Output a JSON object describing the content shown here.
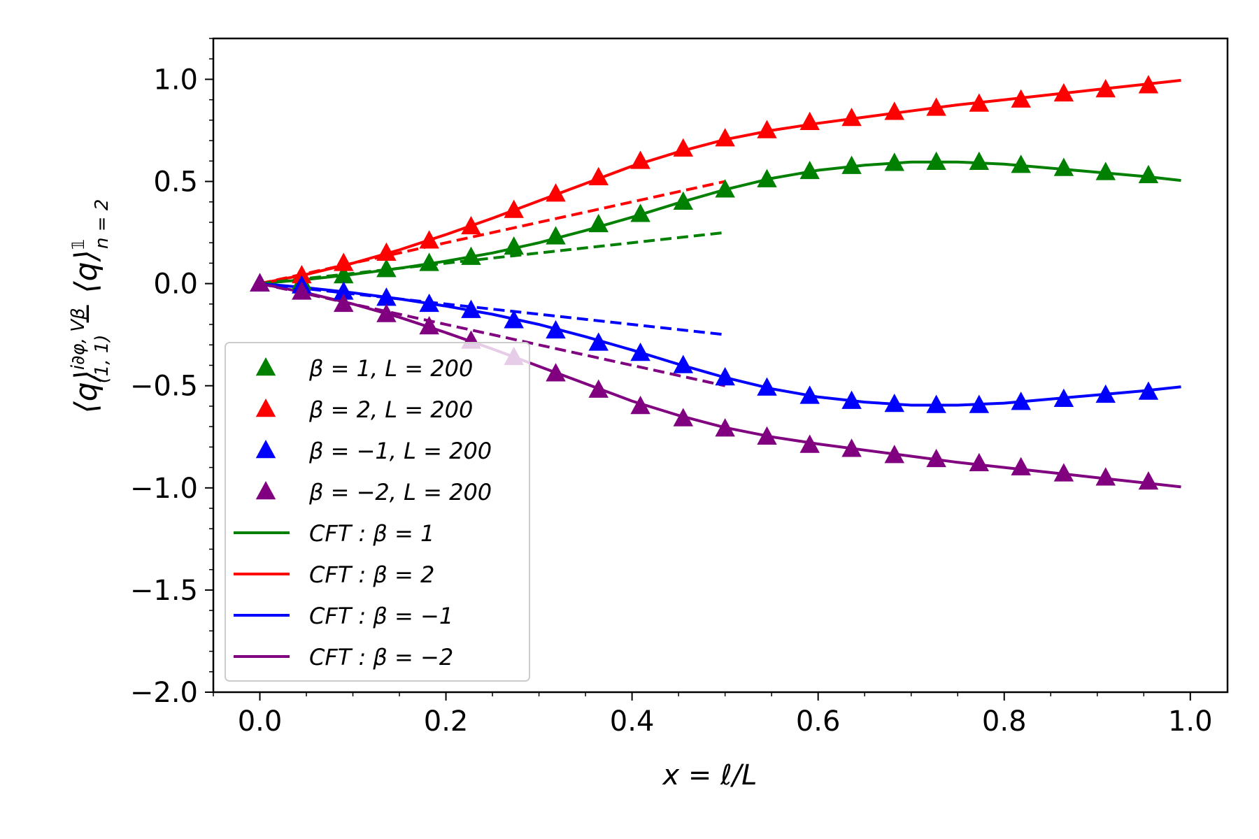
{
  "chart_data": {
    "type": "line",
    "xlabel": "x = ℓ/L",
    "ylabel": "⟨q⟩(1,1)^{i∂φ,Vβ} − ⟨q⟩n=2^𝟙",
    "ylabel_parts": {
      "q1": "⟨q⟩",
      "sup": "i∂φ, Vβ",
      "sub": "(1, 1)",
      "minus": " − ",
      "q2": "⟨q⟩",
      "sup2": "𝟙",
      "sub2": "n = 2"
    },
    "xlim": [
      -0.05,
      1.04
    ],
    "ylim": [
      -2.0,
      1.2
    ],
    "x_ticks": [
      0.0,
      0.2,
      0.4,
      0.6,
      0.8,
      1.0
    ],
    "x_tick_labels": [
      "0.0",
      "0.2",
      "0.4",
      "0.6",
      "0.8",
      "1.0"
    ],
    "y_ticks": [
      1.0,
      0.5,
      0.0,
      -0.5,
      -1.0,
      -1.5,
      -2.0
    ],
    "y_tick_labels": [
      "1.0",
      "0.5",
      "0.0",
      "−0.5",
      "−1.0",
      "−1.5",
      "−2.0"
    ],
    "grid": false,
    "legend_position": "lower-left",
    "x_points": [
      0.0,
      0.045,
      0.09,
      0.136,
      0.182,
      0.227,
      0.273,
      0.318,
      0.364,
      0.409,
      0.455,
      0.5,
      0.545,
      0.591,
      0.636,
      0.682,
      0.727,
      0.773,
      0.818,
      0.864,
      0.909,
      0.955
    ],
    "series": [
      {
        "name": "β = 1, L = 200",
        "marker": "triangle",
        "color": "#008000",
        "values": [
          0.0,
          0.01,
          0.04,
          0.07,
          0.1,
          0.13,
          0.18,
          0.23,
          0.29,
          0.34,
          0.4,
          0.46,
          0.51,
          0.55,
          0.575,
          0.59,
          0.595,
          0.595,
          0.58,
          0.565,
          0.545,
          0.53
        ]
      },
      {
        "name": "β = 2, L = 200",
        "marker": "triangle",
        "color": "#ff0000",
        "values": [
          0.0,
          0.04,
          0.1,
          0.15,
          0.21,
          0.28,
          0.36,
          0.44,
          0.52,
          0.6,
          0.66,
          0.71,
          0.75,
          0.79,
          0.81,
          0.84,
          0.86,
          0.88,
          0.9,
          0.93,
          0.95,
          0.97
        ]
      },
      {
        "name": "β = −1, L = 200",
        "marker": "triangle",
        "color": "#0000ff",
        "values": [
          0.0,
          -0.01,
          -0.04,
          -0.07,
          -0.1,
          -0.13,
          -0.18,
          -0.23,
          -0.29,
          -0.34,
          -0.4,
          -0.46,
          -0.51,
          -0.55,
          -0.575,
          -0.59,
          -0.595,
          -0.595,
          -0.58,
          -0.565,
          -0.545,
          -0.53
        ]
      },
      {
        "name": "β = −2, L = 200",
        "marker": "triangle",
        "color": "#800080",
        "values": [
          0.0,
          -0.04,
          -0.1,
          -0.15,
          -0.21,
          -0.28,
          -0.36,
          -0.44,
          -0.52,
          -0.6,
          -0.66,
          -0.71,
          -0.75,
          -0.79,
          -0.81,
          -0.84,
          -0.86,
          -0.88,
          -0.9,
          -0.93,
          -0.95,
          -0.97
        ]
      }
    ],
    "cft_curves": [
      {
        "name": "CFT : β = 1",
        "color": "#008000",
        "x": [
          0.0,
          0.05,
          0.1,
          0.15,
          0.2,
          0.25,
          0.3,
          0.35,
          0.4,
          0.45,
          0.5,
          0.55,
          0.6,
          0.65,
          0.7,
          0.75,
          0.8,
          0.85,
          0.9,
          0.95,
          0.99
        ],
        "y": [
          0.0,
          0.02,
          0.045,
          0.075,
          0.11,
          0.15,
          0.2,
          0.26,
          0.325,
          0.395,
          0.46,
          0.515,
          0.555,
          0.58,
          0.595,
          0.595,
          0.585,
          0.565,
          0.545,
          0.525,
          0.505
        ]
      },
      {
        "name": "CFT : β = 2",
        "color": "#ff0000",
        "x": [
          0.0,
          0.05,
          0.1,
          0.15,
          0.2,
          0.25,
          0.3,
          0.35,
          0.4,
          0.45,
          0.5,
          0.55,
          0.6,
          0.65,
          0.7,
          0.75,
          0.8,
          0.85,
          0.9,
          0.95,
          0.99
        ],
        "y": [
          0.0,
          0.045,
          0.1,
          0.165,
          0.24,
          0.32,
          0.405,
          0.49,
          0.575,
          0.645,
          0.705,
          0.75,
          0.785,
          0.815,
          0.845,
          0.875,
          0.9,
          0.925,
          0.95,
          0.975,
          0.995
        ]
      },
      {
        "name": "CFT : β = −1",
        "color": "#0000ff",
        "x": [
          0.0,
          0.05,
          0.1,
          0.15,
          0.2,
          0.25,
          0.3,
          0.35,
          0.4,
          0.45,
          0.5,
          0.55,
          0.6,
          0.65,
          0.7,
          0.75,
          0.8,
          0.85,
          0.9,
          0.95,
          0.99
        ],
        "y": [
          0.0,
          -0.02,
          -0.045,
          -0.075,
          -0.11,
          -0.15,
          -0.2,
          -0.26,
          -0.325,
          -0.395,
          -0.46,
          -0.515,
          -0.555,
          -0.58,
          -0.595,
          -0.595,
          -0.585,
          -0.565,
          -0.545,
          -0.525,
          -0.505
        ]
      },
      {
        "name": "CFT : β = −2",
        "color": "#800080",
        "x": [
          0.0,
          0.05,
          0.1,
          0.15,
          0.2,
          0.25,
          0.3,
          0.35,
          0.4,
          0.45,
          0.5,
          0.55,
          0.6,
          0.65,
          0.7,
          0.75,
          0.8,
          0.85,
          0.9,
          0.95,
          0.99
        ],
        "y": [
          0.0,
          -0.045,
          -0.1,
          -0.165,
          -0.24,
          -0.32,
          -0.405,
          -0.49,
          -0.575,
          -0.645,
          -0.705,
          -0.75,
          -0.785,
          -0.815,
          -0.845,
          -0.875,
          -0.9,
          -0.925,
          -0.95,
          -0.975,
          -0.995
        ]
      }
    ],
    "dashed_lines": [
      {
        "color": "#ff0000",
        "x": [
          0.0,
          0.5
        ],
        "y": [
          0.0,
          0.5
        ]
      },
      {
        "color": "#008000",
        "x": [
          0.0,
          0.5
        ],
        "y": [
          0.0,
          0.25
        ]
      },
      {
        "color": "#0000ff",
        "x": [
          0.0,
          0.5
        ],
        "y": [
          0.0,
          -0.25
        ]
      },
      {
        "color": "#800080",
        "x": [
          0.0,
          0.5
        ],
        "y": [
          0.0,
          -0.5
        ]
      }
    ]
  }
}
